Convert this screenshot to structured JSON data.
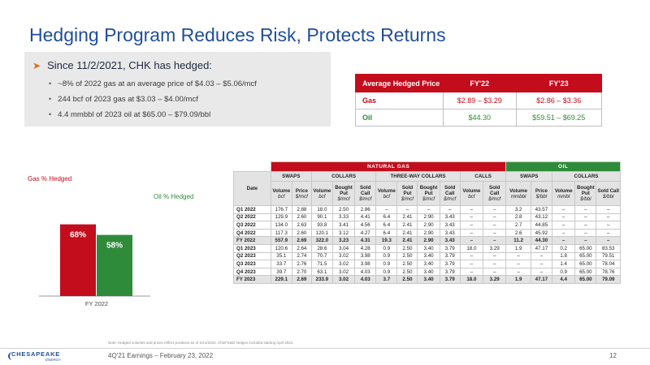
{
  "title": "Hedging Program Reduces Risk, Protects Returns",
  "summary": {
    "heading": "Since 11/2/2021, CHK has hedged:",
    "bullets": [
      "~8% of 2022 gas at an average price of $4.03 – $5.06/mcf",
      "244 bcf of 2023 gas at $3.03 – $4.00/mcf",
      "4.4 mmbbl of 2023 oil at $65.00 – $79.09/bbl"
    ]
  },
  "avg_table": {
    "headers": [
      "Average Hedged Price",
      "FY'22",
      "FY'23"
    ],
    "rows": [
      {
        "label": "Gas",
        "fy22": "$2.89 – $3.29",
        "fy23": "$2.86 – $3.36"
      },
      {
        "label": "Oil",
        "fy22": "$44.30",
        "fy23": "$59.51 – $69.25"
      }
    ]
  },
  "chart_data": {
    "type": "bar",
    "categories": [
      "FY 2022"
    ],
    "series": [
      {
        "name": "Gas % Hedged",
        "values": [
          68
        ],
        "label": "68%",
        "color": "#c30d1c"
      },
      {
        "name": "Oil % Hedged",
        "values": [
          58
        ],
        "label": "58%",
        "color": "#2e8b3a"
      }
    ],
    "xlabel": "",
    "ylabel": "",
    "ylim": [
      0,
      100
    ]
  },
  "hedge_table": {
    "group_gas": "NATURAL GAS",
    "group_oil": "OIL",
    "gas_subgroups": [
      "SWAPS",
      "COLLARS",
      "THREE-WAY COLLARS",
      "CALLS"
    ],
    "oil_subgroups": [
      "SWAPS",
      "COLLARS"
    ],
    "date_header": "Date",
    "columns": [
      {
        "name": "Volume",
        "unit": "bcf"
      },
      {
        "name": "Price",
        "unit": "$/mcf"
      },
      {
        "name": "Volume",
        "unit": "bcf"
      },
      {
        "name": "Bought Put",
        "unit": "$/mcf"
      },
      {
        "name": "Sold Call",
        "unit": "$/mcf"
      },
      {
        "name": "Volume",
        "unit": "bcf"
      },
      {
        "name": "Sold Put",
        "unit": "$/mcf"
      },
      {
        "name": "Bought Put",
        "unit": "$/mcf"
      },
      {
        "name": "Sold Call",
        "unit": "$/mcf"
      },
      {
        "name": "Volume",
        "unit": "bcf"
      },
      {
        "name": "Sold Call",
        "unit": "$/mcf"
      },
      {
        "name": "Volume",
        "unit": "mmbbl"
      },
      {
        "name": "Price",
        "unit": "$/bbl"
      },
      {
        "name": "Volume",
        "unit": "mmbl"
      },
      {
        "name": "Bought Put",
        "unit": "$/bbl"
      },
      {
        "name": "Sold Call",
        "unit": "$/bbl"
      }
    ],
    "rows": [
      {
        "date": "Q1 2022",
        "cells": [
          "176.7",
          "2.88",
          "18.0",
          "2.50",
          "2.86",
          "–",
          "–",
          "–",
          "–",
          "–",
          "–",
          "3.2",
          "43.57",
          "–",
          "–",
          "–"
        ]
      },
      {
        "date": "Q2 2022",
        "cells": [
          "129.9",
          "2.60",
          "90.1",
          "3.33",
          "4.41",
          "6.4",
          "2.41",
          "2.90",
          "3.43",
          "–",
          "–",
          "2.8",
          "43.12",
          "–",
          "–",
          "–"
        ]
      },
      {
        "date": "Q3 2022",
        "cells": [
          "134.0",
          "2.63",
          "93.8",
          "3.41",
          "4.56",
          "6.4",
          "2.41",
          "2.90",
          "3.43",
          "–",
          "–",
          "2.7",
          "44.85",
          "–",
          "–",
          "–"
        ]
      },
      {
        "date": "Q4 2022",
        "cells": [
          "117.3",
          "2.60",
          "120.1",
          "3.12",
          "4.27",
          "6.4",
          "2.41",
          "2.90",
          "3.43",
          "–",
          "–",
          "2.6",
          "45.92",
          "–",
          "–",
          "–"
        ]
      },
      {
        "date": "FY 2022",
        "total": true,
        "cells": [
          "557.9",
          "2.69",
          "322.0",
          "3.23",
          "4.31",
          "19.3",
          "2.41",
          "2.90",
          "3.43",
          "–",
          "–",
          "11.2",
          "44.30",
          "–",
          "–",
          "–"
        ]
      },
      {
        "date": "Q1 2023",
        "cells": [
          "120.6",
          "2.64",
          "28.6",
          "3.04",
          "4.28",
          "0.9",
          "2.50",
          "3.40",
          "3.79",
          "18.0",
          "3.29",
          "1.9",
          "47.17",
          "0.2",
          "65.00",
          "83.53"
        ]
      },
      {
        "date": "Q2 2023",
        "cells": [
          "35.1",
          "2.74",
          "70.7",
          "3.02",
          "3.98",
          "0.9",
          "2.50",
          "3.40",
          "3.79",
          "–",
          "–",
          "–",
          "–",
          "1.8",
          "65.00",
          "79.51"
        ]
      },
      {
        "date": "Q3 2023",
        "cells": [
          "33.7",
          "2.76",
          "71.5",
          "3.02",
          "3.98",
          "0.9",
          "2.50",
          "3.40",
          "3.79",
          "–",
          "–",
          "–",
          "–",
          "1.4",
          "65.00",
          "78.04"
        ]
      },
      {
        "date": "Q4 2023",
        "cells": [
          "39.7",
          "2.70",
          "63.1",
          "3.02",
          "4.03",
          "0.9",
          "2.50",
          "3.40",
          "3.79",
          "–",
          "–",
          "–",
          "–",
          "0.9",
          "65.00",
          "78.76"
        ]
      },
      {
        "date": "FY 2023",
        "total": true,
        "cells": [
          "229.1",
          "2.69",
          "233.9",
          "3.02",
          "4.03",
          "3.7",
          "2.50",
          "3.40",
          "3.79",
          "18.0",
          "3.29",
          "1.9",
          "47.17",
          "4.4",
          "65.00",
          "79.09"
        ]
      }
    ]
  },
  "note": "Note: Hedged volumes and prices reflect positions as of 2/21/2022. Chief E&D hedges included starting April 2022.",
  "footer": {
    "logo_name": "CHESAPEAKE",
    "logo_sub": "ENERGY",
    "text": "4Q'21 Earnings – February 23, 2022",
    "page": "12"
  },
  "colors": {
    "brand_blue": "#1f4e9b",
    "gas_red": "#c30d1c",
    "oil_green": "#2e8b3a",
    "accent_orange": "#e06a1e"
  }
}
